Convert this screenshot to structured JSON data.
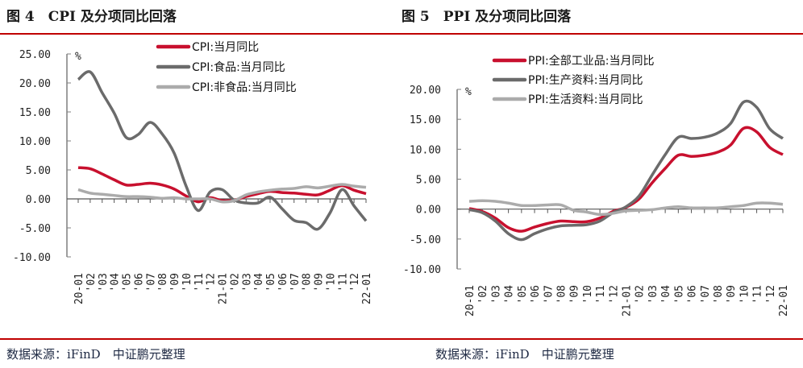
{
  "left": {
    "title": "图 4　CPI 及分项同比回落",
    "source": "数据来源：iFinD　中证鹏元整理"
  },
  "right": {
    "title": "图 5　PPI 及分项同比回落",
    "source": "数据来源：iFinD　中证鹏元整理"
  },
  "chart_data": [
    {
      "type": "line",
      "unit": "%",
      "ylim": [
        -10,
        25
      ],
      "yticks": [
        "25.00",
        "20.00",
        "15.00",
        "10.00",
        "5.00",
        "0.00",
        "-5.00",
        "-10.00"
      ],
      "legend": "top",
      "categories": [
        "20-01",
        "'02",
        "'03",
        "'04",
        "'05",
        "'06",
        "'07",
        "'08",
        "'09",
        "'10",
        "'11",
        "'12",
        "21-01",
        "'02",
        "'03",
        "'04",
        "'05",
        "'06",
        "'07",
        "'08",
        "'09",
        "'10",
        "'11",
        "'12",
        "22-01"
      ],
      "series": [
        {
          "name": "CPI:当月同比",
          "color": "#c8102e",
          "values": [
            5.4,
            5.2,
            4.3,
            3.3,
            2.4,
            2.5,
            2.7,
            2.4,
            1.7,
            0.5,
            -0.5,
            0.2,
            -0.3,
            -0.2,
            0.4,
            0.9,
            1.3,
            1.1,
            1.0,
            0.8,
            0.7,
            1.5,
            2.3,
            1.5,
            0.9
          ]
        },
        {
          "name": "CPI:食品:当月同比",
          "color": "#6b6b6b",
          "values": [
            20.6,
            21.9,
            18.3,
            14.8,
            10.6,
            11.1,
            13.2,
            11.2,
            7.9,
            2.2,
            -2.0,
            1.2,
            1.6,
            -0.2,
            -0.7,
            -0.7,
            0.3,
            -1.7,
            -3.7,
            -4.1,
            -5.2,
            -2.4,
            1.6,
            -1.2,
            -3.8
          ]
        },
        {
          "name": "CPI:非食品:当月同比",
          "color": "#ababab",
          "values": [
            1.6,
            1.0,
            0.8,
            0.6,
            0.4,
            0.4,
            0.3,
            0.1,
            0.2,
            0.0,
            0.0,
            0.0,
            -0.5,
            -0.3,
            0.7,
            1.2,
            1.5,
            1.7,
            1.8,
            2.1,
            1.9,
            2.2,
            2.5,
            2.2,
            2.0
          ]
        }
      ]
    },
    {
      "type": "line",
      "unit": "%",
      "ylim": [
        -10,
        20
      ],
      "yticks": [
        "20.00",
        "15.00",
        "10.00",
        "5.00",
        "0.00",
        "-5.00",
        "-10.00"
      ],
      "legend": "top",
      "categories": [
        "20-01",
        "'02",
        "'03",
        "'04",
        "'05",
        "'06",
        "'07",
        "'08",
        "'09",
        "'10",
        "'11",
        "'12",
        "21-01",
        "'02",
        "'03",
        "'04",
        "'05",
        "'06",
        "'07",
        "'08",
        "'09",
        "'10",
        "'11",
        "'12",
        "22-01"
      ],
      "series": [
        {
          "name": "PPI:全部工业品:当月同比",
          "color": "#c8102e",
          "values": [
            0.1,
            -0.4,
            -1.5,
            -3.1,
            -3.7,
            -3.0,
            -2.4,
            -2.0,
            -2.1,
            -2.1,
            -1.5,
            -0.4,
            0.3,
            1.7,
            4.4,
            6.8,
            9.0,
            8.8,
            9.0,
            9.5,
            10.7,
            13.5,
            12.9,
            10.3,
            9.1
          ]
        },
        {
          "name": "PPI:生产资料:当月同比",
          "color": "#6b6b6b",
          "values": [
            -0.1,
            -0.6,
            -2.0,
            -4.1,
            -5.1,
            -4.1,
            -3.3,
            -2.8,
            -2.7,
            -2.6,
            -2.0,
            -0.6,
            0.4,
            2.2,
            5.7,
            9.1,
            12.0,
            11.8,
            12.0,
            12.7,
            14.3,
            17.9,
            17.0,
            13.4,
            11.8
          ]
        },
        {
          "name": "PPI:生活资料:当月同比",
          "color": "#ababab",
          "values": [
            1.3,
            1.4,
            1.3,
            1.0,
            0.6,
            0.6,
            0.7,
            0.7,
            -0.2,
            -0.5,
            -0.9,
            -0.7,
            -0.3,
            -0.2,
            -0.1,
            0.2,
            0.4,
            0.2,
            0.2,
            0.2,
            0.4,
            0.6,
            1.0,
            1.0,
            0.8
          ]
        }
      ]
    }
  ]
}
